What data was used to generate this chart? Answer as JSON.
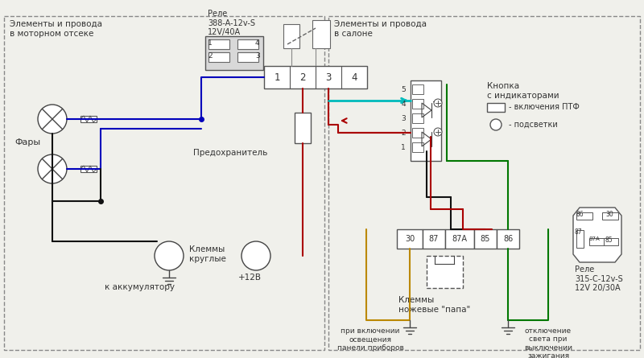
{
  "bg_color": "#f0f0eb",
  "left_section_label": "Элементы и провода\nв моторном отсеке",
  "right_section_label": "Элементы и провода\nв салоне",
  "relay1_label": "Реле\n388-A-12v-S\n12V/40A",
  "relay2_label": "Реле\n315-C-12v-S\n12V 20/30A",
  "fuse_label": "Предохранитель",
  "round_terminals_label": "Клеммы\nкруглые",
  "battery_label": "к аккумулятору",
  "blade_terminals_label": "Клеммы\nножевые \"папа\"",
  "button_label": "Кнопка\nс индикаторами",
  "legend_ptf": "- включения ПТФ",
  "legend_back": "- подсветки",
  "headlights_label": "Фары",
  "bottom_left_label": "при включении\nосвещения\nпанели приборов",
  "bottom_right_label": "отключение\nсвета при\nвыключении\nзажигания",
  "plus12v_label": "+12В",
  "color_blue": "#0000bb",
  "color_red": "#aa0000",
  "color_black": "#111111",
  "color_cyan": "#00bbbb",
  "color_yellow": "#bb8800",
  "color_green": "#007700",
  "color_gray": "#777777",
  "color_darkgray": "#444444"
}
